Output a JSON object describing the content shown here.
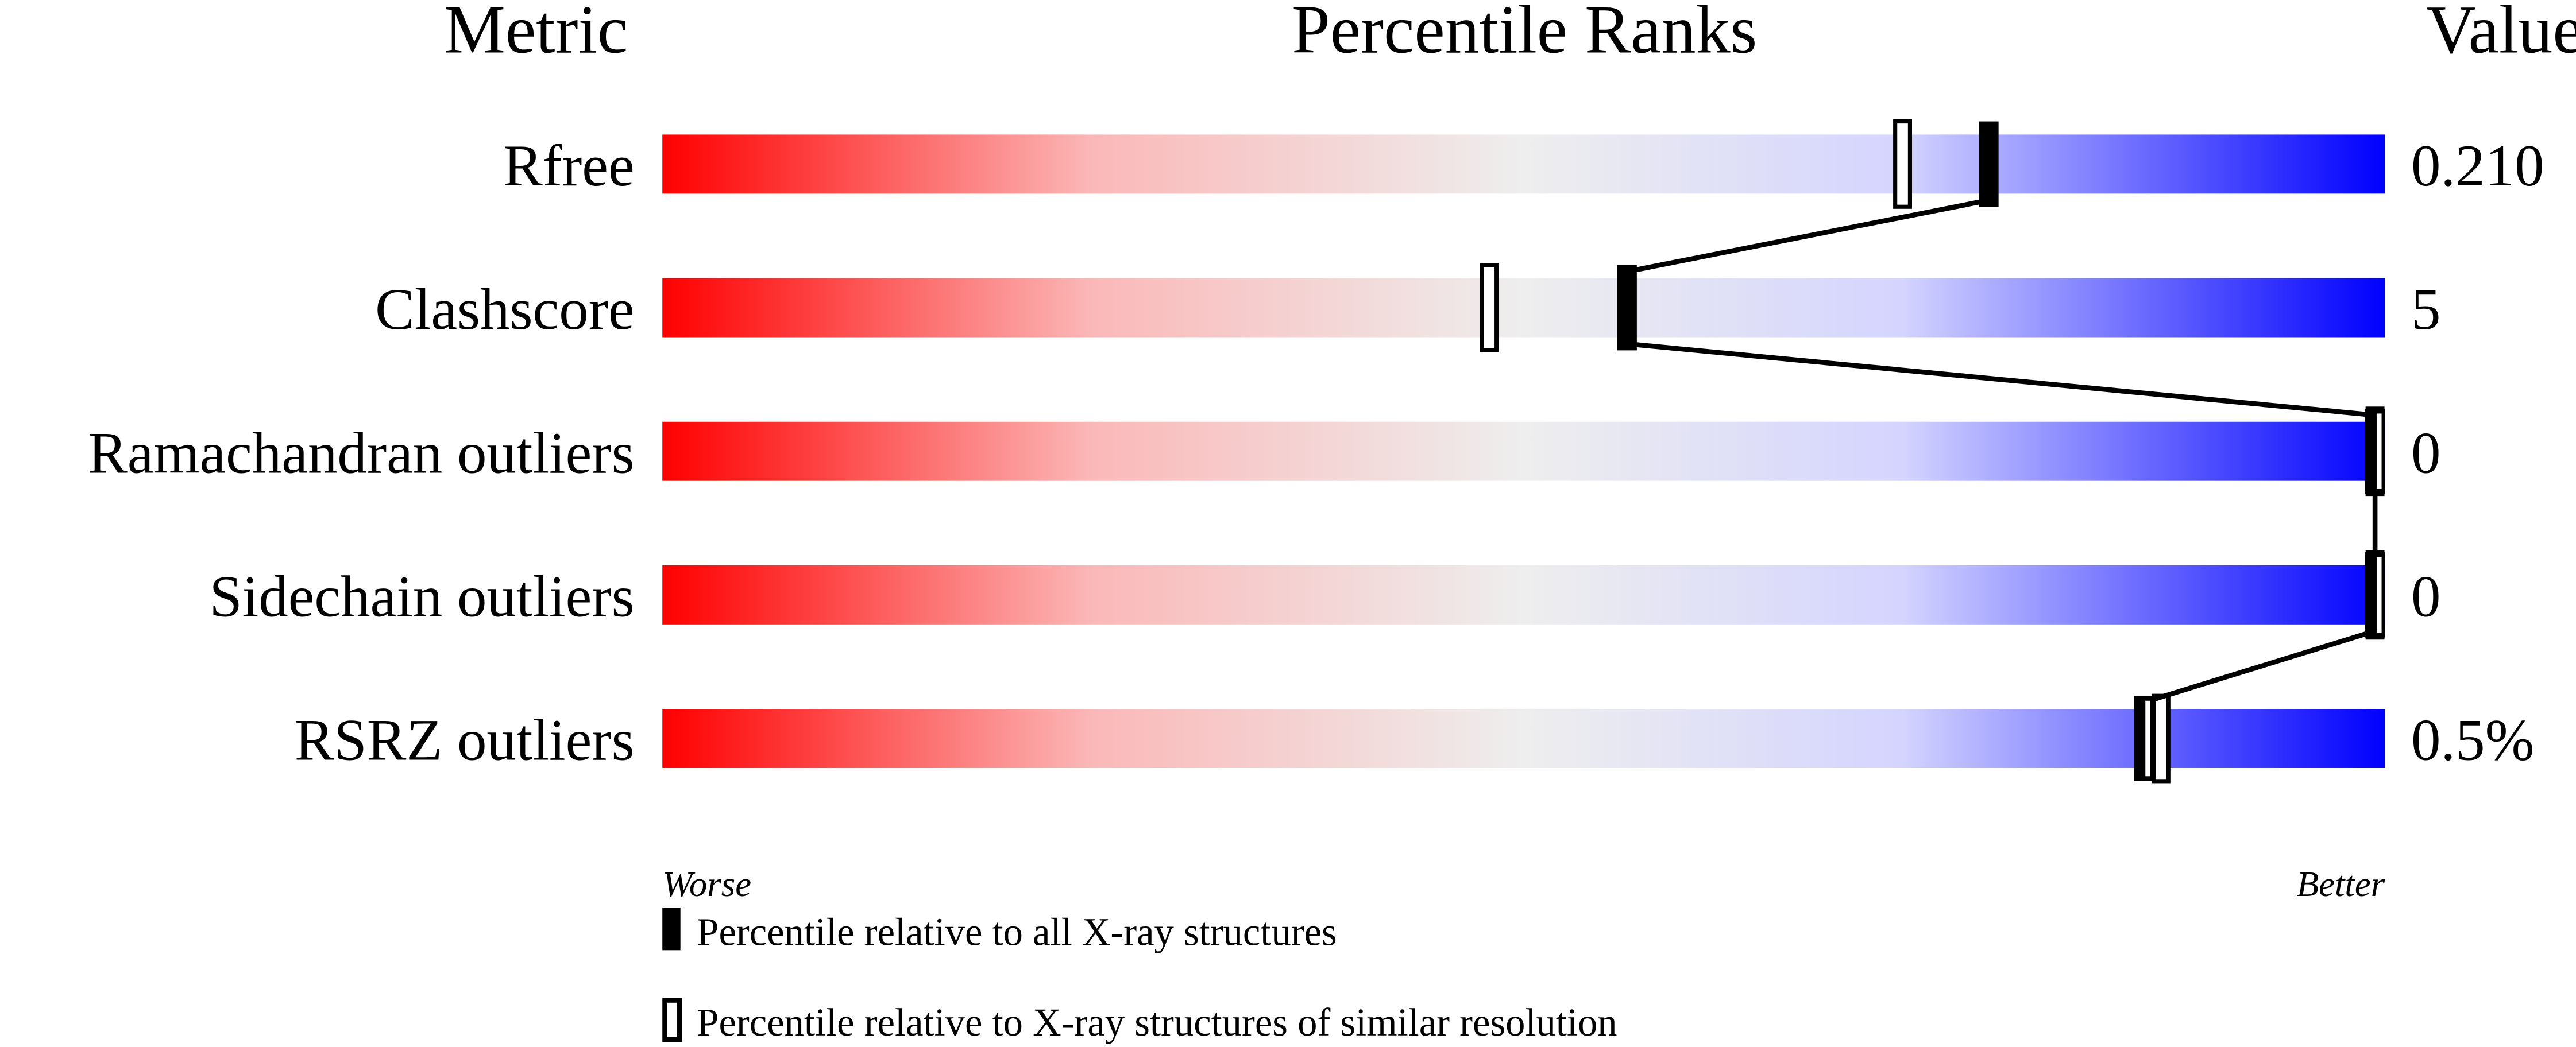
{
  "chart_data": {
    "type": "bar",
    "headers": {
      "metric": "Metric",
      "ranks": "Percentile Ranks",
      "value": "Value"
    },
    "xlim": [
      0,
      100
    ],
    "axis_left_label": "Worse",
    "axis_right_label": "Better",
    "metrics": [
      {
        "name": "Rfree",
        "value": "0.210",
        "percentile_all": 77,
        "percentile_similar": 72
      },
      {
        "name": "Clashscore",
        "value": "5",
        "percentile_all": 56,
        "percentile_similar": 48
      },
      {
        "name": "Ramachandran outliers",
        "value": "0",
        "percentile_all": 100,
        "percentile_similar": 100
      },
      {
        "name": "Sidechain outliers",
        "value": "0",
        "percentile_all": 100,
        "percentile_similar": 100
      },
      {
        "name": "RSRZ outliers",
        "value": "0.5%",
        "percentile_all": 86,
        "percentile_similar": 87
      }
    ],
    "legend": [
      {
        "marker": "filled",
        "label": "Percentile relative to all X-ray structures"
      },
      {
        "marker": "open",
        "label": "Percentile relative to X-ray structures of similar resolution"
      }
    ],
    "gradient_colors": [
      "#ff0000",
      "#f8c8c8",
      "#eeeeee",
      "#d8d8ff",
      "#0000ff"
    ]
  }
}
